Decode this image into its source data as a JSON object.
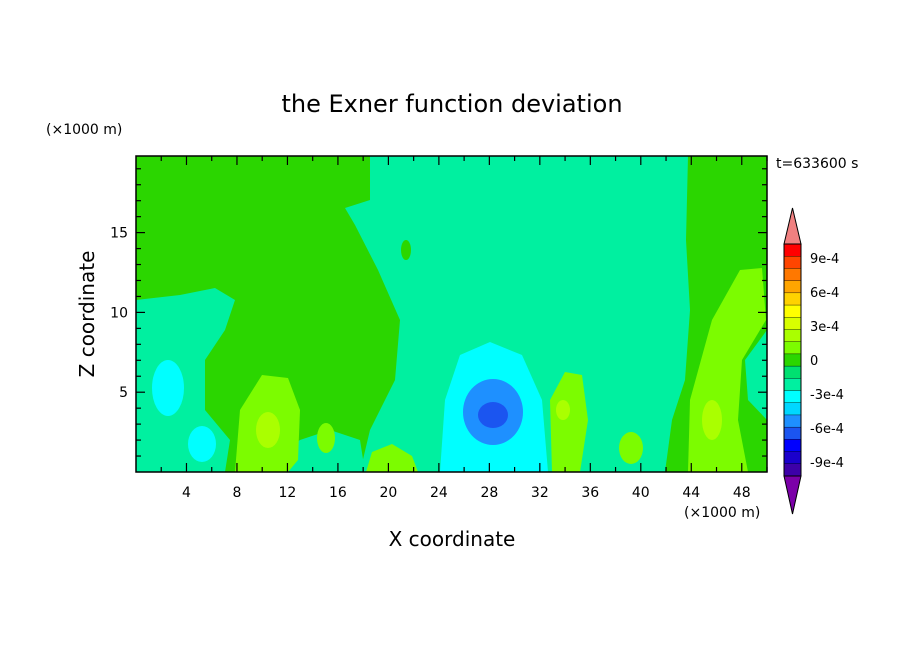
{
  "chart_data": {
    "type": "contour",
    "title": "the Exner function deviation",
    "xlabel": "X coordinate",
    "ylabel": "Z coordinate",
    "x_unit": "(×1000 m)",
    "y_unit": "(×1000 m)",
    "time_label": "t=633600 s",
    "xlim": [
      0,
      50
    ],
    "ylim": [
      0,
      19.8
    ],
    "x_ticks": [
      "4",
      "8",
      "12",
      "16",
      "20",
      "24",
      "28",
      "32",
      "36",
      "40",
      "44",
      "48"
    ],
    "y_ticks": [
      "5",
      "10",
      "15"
    ],
    "colorbar": {
      "tick_labels": [
        "9e-4",
        "6e-4",
        "3e-4",
        "0",
        "-3e-4",
        "-6e-4",
        "-9e-4"
      ],
      "levels": [
        -0.0009,
        -0.0006,
        -0.0003,
        0,
        0.0003,
        0.0006,
        0.0009
      ],
      "colors": [
        "#7b00a8",
        "#3d00a8",
        "#1a00cc",
        "#0000ff",
        "#1b55f0",
        "#1e90ff",
        "#00d7ff",
        "#00ffff",
        "#00f0a0",
        "#00e070",
        "#2bd600",
        "#7cfc00",
        "#aaff00",
        "#d8ff00",
        "#ffff00",
        "#ffd200",
        "#ffa500",
        "#ff7800",
        "#ff4500",
        "#ff0000",
        "#f08080"
      ]
    },
    "features": [
      {
        "kind": "minimum",
        "x": 28,
        "z": 3.7,
        "value": -0.0006
      },
      {
        "kind": "zero-band",
        "x_range": [
          18,
          44
        ],
        "z_range": [
          0,
          19.8
        ]
      }
    ]
  }
}
